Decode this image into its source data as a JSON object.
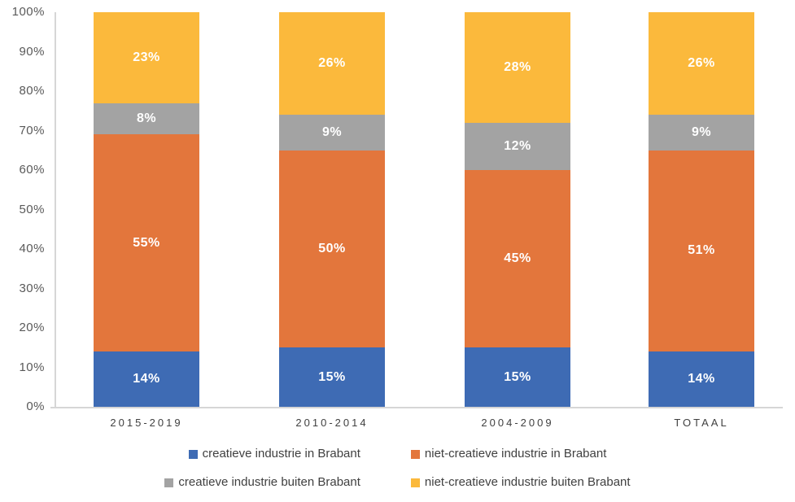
{
  "chart_data": {
    "type": "bar",
    "variant": "stacked-100",
    "title": "",
    "xlabel": "",
    "ylabel": "",
    "grid": false,
    "legend_position": "bottom",
    "categories": [
      "2015-2019",
      "2010-2014",
      "2004-2009",
      "TOTAAL"
    ],
    "series": [
      {
        "name": "creatieve industrie in Brabant",
        "color": "#3e6bb4",
        "values": [
          14,
          15,
          15,
          14
        ]
      },
      {
        "name": "niet-creatieve industrie in Brabant",
        "color": "#e3763c",
        "values": [
          55,
          50,
          45,
          51
        ]
      },
      {
        "name": "creatieve industrie buiten Brabant",
        "color": "#a3a3a3",
        "values": [
          8,
          9,
          12,
          9
        ]
      },
      {
        "name": "niet-creatieve industrie buiten Brabant",
        "color": "#fbb93c",
        "values": [
          23,
          26,
          28,
          26
        ]
      }
    ],
    "data_label_suffix": "%",
    "data_label_color": "#ffffff",
    "y_axis": {
      "min": 0,
      "max": 100,
      "tick_step": 10,
      "tick_labels": [
        "0%",
        "10%",
        "20%",
        "30%",
        "40%",
        "50%",
        "60%",
        "70%",
        "80%",
        "90%",
        "100%"
      ]
    }
  }
}
